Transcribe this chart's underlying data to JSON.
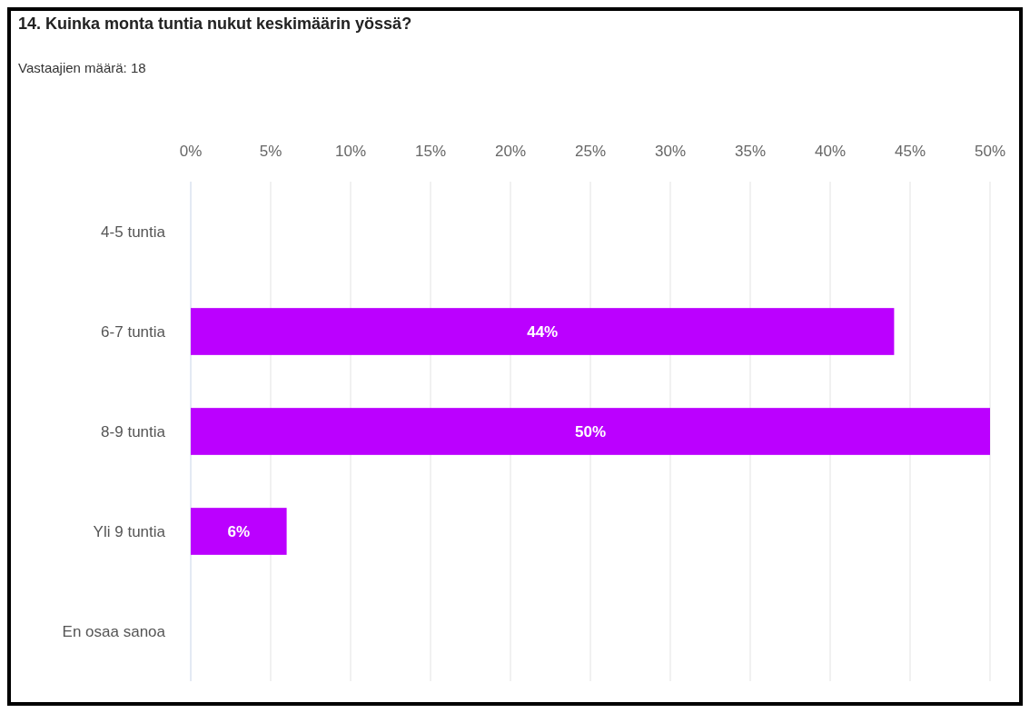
{
  "chart_data": {
    "type": "bar",
    "orientation": "horizontal",
    "title": "14. Kuinka monta tuntia nukut keskimäärin yössä?",
    "subtitle": "Vastaajien määrä: 18",
    "categories": [
      "4-5 tuntia",
      "6-7 tuntia",
      "8-9 tuntia",
      "Yli 9 tuntia",
      "En osaa sanoa"
    ],
    "values": [
      0,
      44,
      50,
      6,
      0
    ],
    "color": "#bb00ff",
    "xlim": [
      0,
      50
    ],
    "xticks": [
      {
        "value": 0,
        "label": "0%"
      },
      {
        "value": 5,
        "label": "5%"
      },
      {
        "value": 10,
        "label": "10%"
      },
      {
        "value": 15,
        "label": "15%"
      },
      {
        "value": 20,
        "label": "20%"
      },
      {
        "value": 25,
        "label": "25%"
      },
      {
        "value": 30,
        "label": "30%"
      },
      {
        "value": 35,
        "label": "35%"
      },
      {
        "value": 40,
        "label": "40%"
      },
      {
        "value": 45,
        "label": "45%"
      },
      {
        "value": 50,
        "label": "50%"
      }
    ],
    "value_labels": [
      null,
      "44%",
      "50%",
      "6%",
      null
    ],
    "grid": "x"
  }
}
